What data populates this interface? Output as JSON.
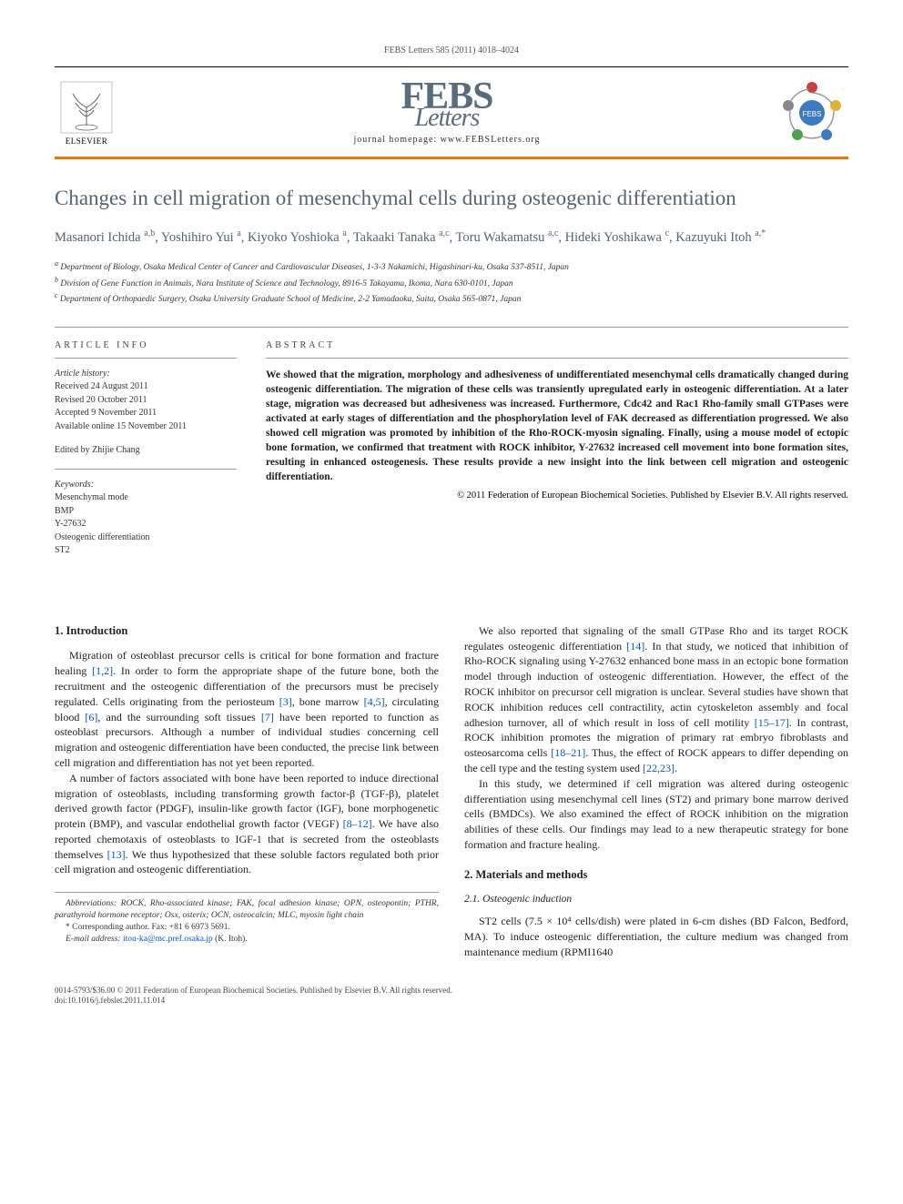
{
  "topbar": "FEBS Letters 585 (2011) 4018–4024",
  "publisher": {
    "name": "ELSEVIER"
  },
  "journal": {
    "name_main": "FEBS",
    "name_sub": "Letters",
    "homepage_label": "journal homepage: www.FEBSLetters.org"
  },
  "title": "Changes in cell migration of mesenchymal cells during osteogenic differentiation",
  "authors_html": "Masanori Ichida <sup>a,b</sup>, Yoshihiro Yui <sup>a</sup>, Kiyoko Yoshioka <sup>a</sup>, Takaaki Tanaka <sup>a,c</sup>, Toru Wakamatsu <sup>a,c</sup>, Hideki Yoshikawa <sup>c</sup>, Kazuyuki Itoh <sup>a,*</sup>",
  "affiliations": [
    "a Department of Biology, Osaka Medical Center of Cancer and Cardiovascular Diseases, 1-3-3 Nakamichi, Higashinari-ku, Osaka 537-8511, Japan",
    "b Division of Gene Function in Animals, Nara Institute of Science and Technology, 8916-5 Takayama, Ikoma, Nara 630-0101, Japan",
    "c Department of Orthopaedic Surgery, Osaka University Graduate School of Medicine, 2-2 Yamadaoka, Suita, Osaka 565-0871, Japan"
  ],
  "info": {
    "header": "ARTICLE INFO",
    "history_label": "Article history:",
    "history": [
      "Received 24 August 2011",
      "Revised 20 October 2011",
      "Accepted 9 November 2011",
      "Available online 15 November 2011"
    ],
    "edited_by": "Edited by Zhijie Chang",
    "keywords_label": "Keywords:",
    "keywords": [
      "Mesenchymal mode",
      "BMP",
      "Y-27632",
      "Osteogenic differentiation",
      "ST2"
    ]
  },
  "abstract": {
    "header": "ABSTRACT",
    "text": "We showed that the migration, morphology and adhesiveness of undifferentiated mesenchymal cells dramatically changed during osteogenic differentiation. The migration of these cells was transiently upregulated early in osteogenic differentiation. At a later stage, migration was decreased but adhesiveness was increased. Furthermore, Cdc42 and Rac1 Rho-family small GTPases were activated at early stages of differentiation and the phosphorylation level of FAK decreased as differentiation progressed. We also showed cell migration was promoted by inhibition of the Rho-ROCK-myosin signaling. Finally, using a mouse model of ectopic bone formation, we confirmed that treatment with ROCK inhibitor, Y-27632 increased cell movement into bone formation sites, resulting in enhanced osteogenesis. These results provide a new insight into the link between cell migration and osteogenic differentiation.",
    "copyright": "© 2011 Federation of European Biochemical Societies. Published by Elsevier B.V. All rights reserved."
  },
  "sections": {
    "s1_head": "1. Introduction",
    "s1_p1": "Migration of osteoblast precursor cells is critical for bone formation and fracture healing [1,2]. In order to form the appropriate shape of the future bone, both the recruitment and the osteogenic differentiation of the precursors must be precisely regulated. Cells originating from the periosteum [3], bone marrow [4,5], circulating blood [6], and the surrounding soft tissues [7] have been reported to function as osteoblast precursors. Although a number of individual studies concerning cell migration and osteogenic differentiation have been conducted, the precise link between cell migration and differentiation has not yet been reported.",
    "s1_p2": "A number of factors associated with bone have been reported to induce directional migration of osteoblasts, including transforming growth factor-β (TGF-β), platelet derived growth factor (PDGF), insulin-like growth factor (IGF), bone morphogenetic protein (BMP), and vascular endothelial growth factor (VEGF) [8–12]. We have also reported chemotaxis of osteoblasts to IGF-1 that is secreted from the osteoblasts themselves [13]. We thus hypothesized that these soluble factors regulated both prior cell migration and osteogenic differentiation.",
    "s1_p3": "We also reported that signaling of the small GTPase Rho and its target ROCK regulates osteogenic differentiation [14]. In that study, we noticed that inhibition of Rho-ROCK signaling using Y-27632 enhanced bone mass in an ectopic bone formation model through induction of osteogenic differentiation. However, the effect of the ROCK inhibitor on precursor cell migration is unclear. Several studies have shown that ROCK inhibition reduces cell contractility, actin cytoskeleton assembly and focal adhesion turnover, all of which result in loss of cell motility [15–17]. In contrast, ROCK inhibition promotes the migration of primary rat embryo fibroblasts and osteosarcoma cells [18–21]. Thus, the effect of ROCK appears to differ depending on the cell type and the testing system used [22,23].",
    "s1_p4": "In this study, we determined if cell migration was altered during osteogenic differentiation using mesenchymal cell lines (ST2) and primary bone marrow derived cells (BMDCs). We also examined the effect of ROCK inhibition on the migration abilities of these cells. Our findings may lead to a new therapeutic strategy for bone formation and fracture healing.",
    "s2_head": "2. Materials and methods",
    "s2_1_head": "2.1. Osteogenic induction",
    "s2_1_p1": "ST2 cells (7.5 × 10⁴ cells/dish) were plated in 6-cm dishes (BD Falcon, Bedford, MA). To induce osteogenic differentiation, the culture medium was changed from maintenance medium (RPMI1640"
  },
  "footnotes": {
    "abbrev": "Abbreviations: ROCK, Rho-associated kinase; FAK, focal adhesion kinase; OPN, osteopontin; PTHR, parathyroid hormone receptor; Osx, osterix; OCN, osteocalcin; MLC, myosin light chain",
    "corr": "* Corresponding author. Fax: +81 6 6973 5691.",
    "email_label": "E-mail address:",
    "email": "itou-ka@mc.pref.osaka.jp",
    "email_to": "(K. Itoh)."
  },
  "footer": {
    "line1": "0014-5793/$36.00 © 2011 Federation of European Biochemical Societies. Published by Elsevier B.V. All rights reserved.",
    "line2": "doi:10.1016/j.febslet.2011.11.014"
  },
  "colors": {
    "accent_orange": "#e87800",
    "title_gray": "#53636f",
    "febs_gray": "#5a6b7a",
    "link_blue": "#0055cc"
  }
}
